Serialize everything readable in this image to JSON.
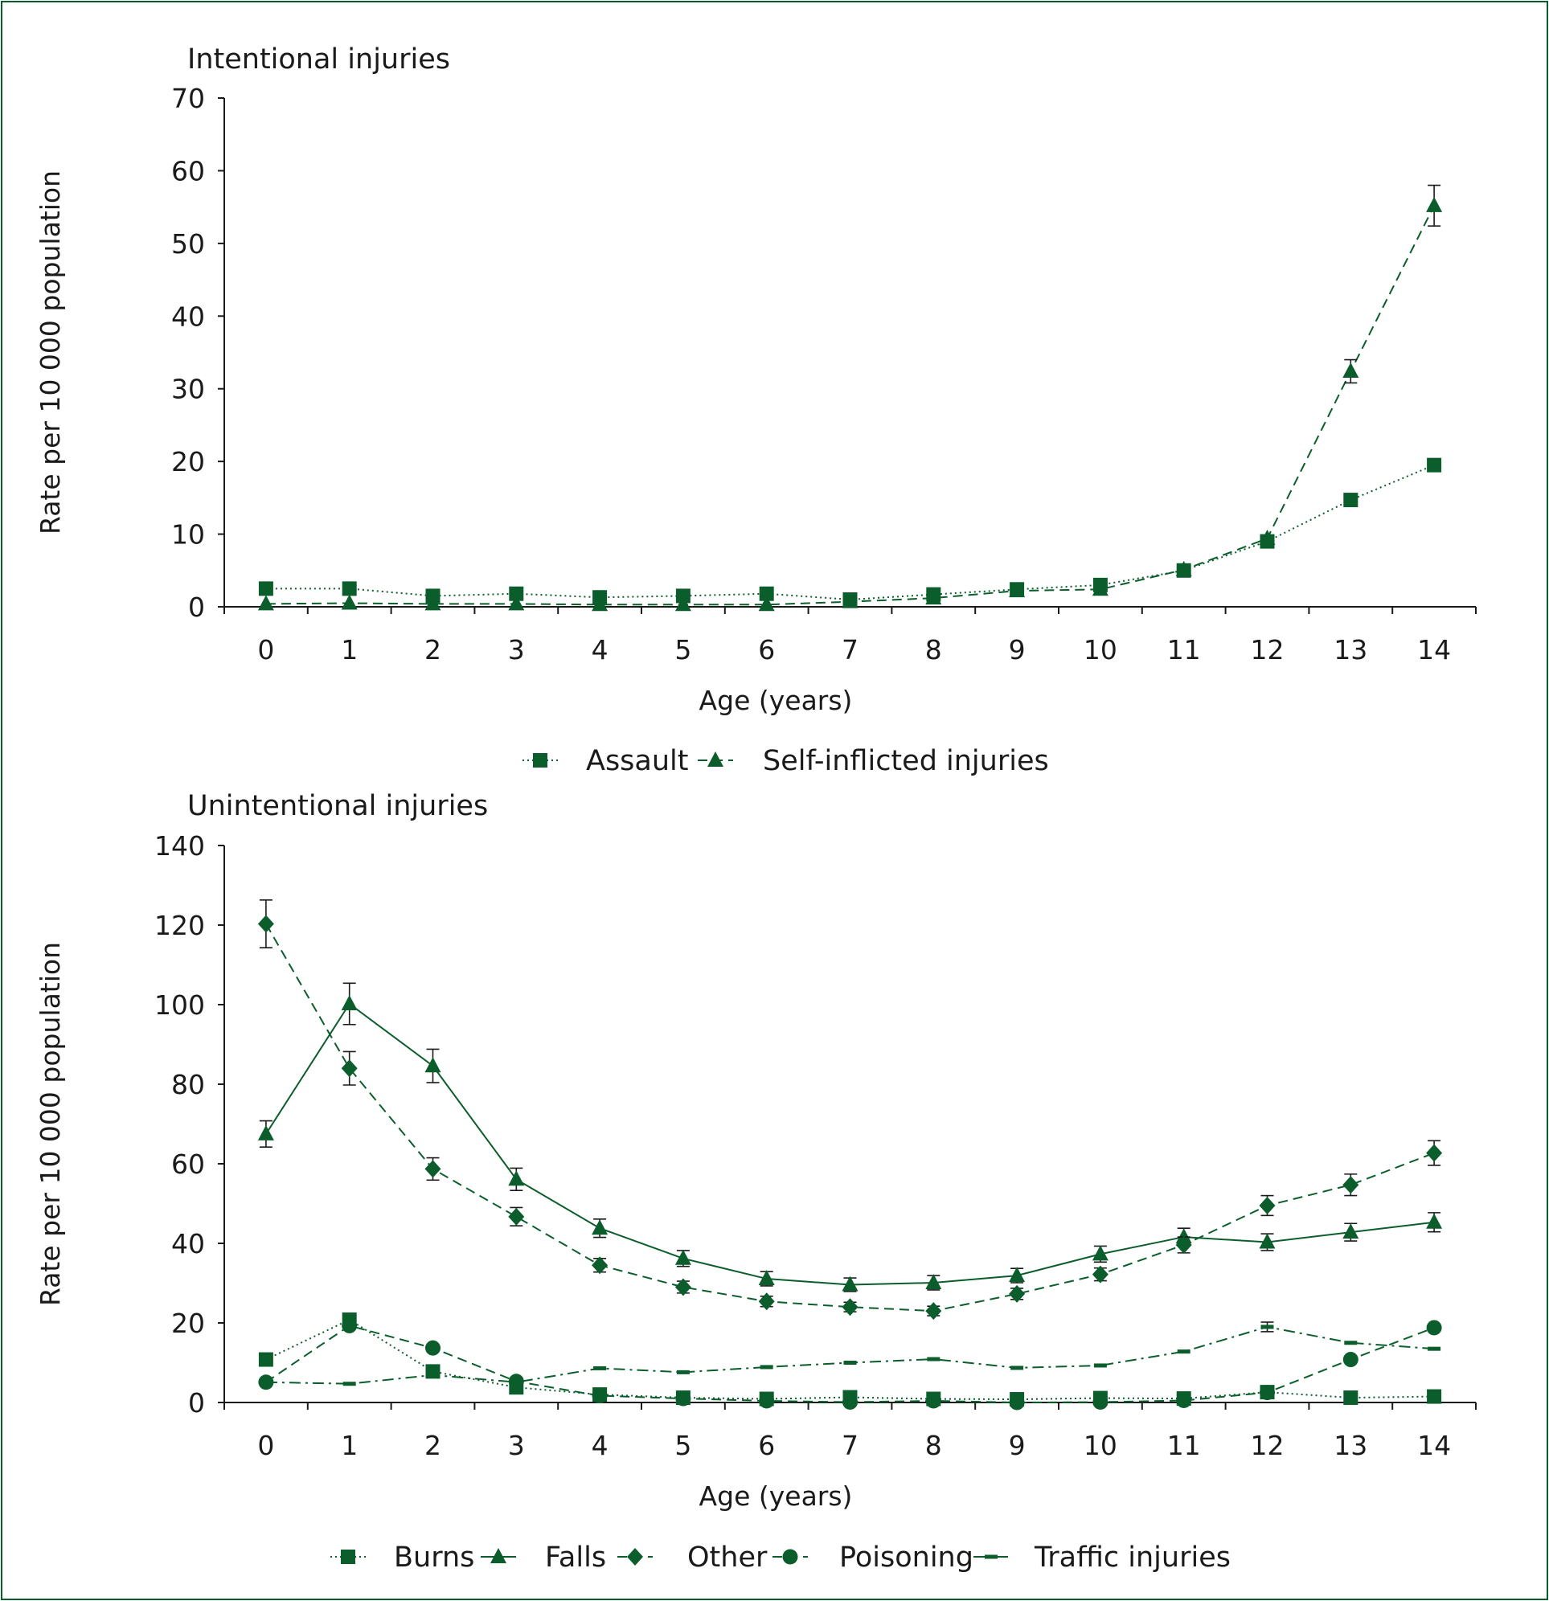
{
  "colors": {
    "series": "#0b5e2b",
    "axis": "#1a1a1a",
    "frame": "#0b5e2b"
  },
  "chart_data": [
    {
      "type": "line",
      "title": "Intentional injuries",
      "xlabel": "Age (years)",
      "ylabel": "Rate per 10 000 population",
      "x": [
        0,
        1,
        2,
        3,
        4,
        5,
        6,
        7,
        8,
        9,
        10,
        11,
        12,
        13,
        14
      ],
      "ylim": [
        0,
        70
      ],
      "yticks": [
        0,
        10,
        20,
        30,
        40,
        50,
        60,
        70
      ],
      "grid": false,
      "legend": "bottom",
      "series": [
        {
          "name": "Assault",
          "marker": "square",
          "line": "dotted",
          "values": [
            2.5,
            2.5,
            1.5,
            1.8,
            1.3,
            1.5,
            1.8,
            1.0,
            1.7,
            2.4,
            3.0,
            5.0,
            9.0,
            14.7,
            19.5
          ],
          "error": [
            0,
            0,
            0,
            0,
            0,
            0,
            0,
            0,
            0,
            0,
            0,
            0,
            0,
            0,
            0.8
          ]
        },
        {
          "name": "Self-inflicted injuries",
          "marker": "triangle",
          "line": "dashed",
          "values": [
            0.4,
            0.5,
            0.4,
            0.4,
            0.3,
            0.3,
            0.3,
            0.7,
            1.2,
            2.2,
            2.4,
            5.1,
            9.4,
            32.4,
            55.2
          ],
          "error": [
            0,
            0,
            0,
            0,
            0,
            0,
            0,
            0,
            0,
            0,
            0,
            0,
            0,
            1.6,
            2.8
          ]
        }
      ]
    },
    {
      "type": "line",
      "title": "Unintentional injuries",
      "xlabel": "Age (years)",
      "ylabel": "Rate per 10 000 population",
      "x": [
        0,
        1,
        2,
        3,
        4,
        5,
        6,
        7,
        8,
        9,
        10,
        11,
        12,
        13,
        14
      ],
      "ylim": [
        0,
        140
      ],
      "yticks": [
        0,
        20,
        40,
        60,
        80,
        100,
        120,
        140
      ],
      "grid": false,
      "legend": "bottom",
      "series": [
        {
          "name": "Burns",
          "marker": "square",
          "line": "dotted",
          "values": [
            10.8,
            20.8,
            7.8,
            3.8,
            2.0,
            1.2,
            0.9,
            1.3,
            0.9,
            0.8,
            1.1,
            1.0,
            2.6,
            1.2,
            1.5
          ],
          "error": [
            0,
            0,
            0,
            0,
            0,
            0,
            0,
            0,
            0,
            0,
            0,
            0,
            0,
            0,
            0
          ]
        },
        {
          "name": "Falls",
          "marker": "triangle",
          "line": "solid",
          "values": [
            67.5,
            100.2,
            84.6,
            56.1,
            43.8,
            36.2,
            31.1,
            29.6,
            30.1,
            31.9,
            37.3,
            41.6,
            40.3,
            42.8,
            45.3
          ],
          "error": [
            3.3,
            5.2,
            4.2,
            2.8,
            2.3,
            2.0,
            1.8,
            1.7,
            1.8,
            1.8,
            2.0,
            2.2,
            2.1,
            2.2,
            2.4
          ]
        },
        {
          "name": "Other",
          "marker": "diamond",
          "line": "dashed",
          "values": [
            120.3,
            84.0,
            58.7,
            46.7,
            34.5,
            29.0,
            25.4,
            24.0,
            23.0,
            27.3,
            32.2,
            39.6,
            49.5,
            54.7,
            62.7
          ],
          "error": [
            6.0,
            4.2,
            2.8,
            2.3,
            1.7,
            1.5,
            1.3,
            1.2,
            1.2,
            1.4,
            1.6,
            2.0,
            2.5,
            2.7,
            3.1
          ]
        },
        {
          "name": "Poisoning",
          "marker": "circle",
          "line": "dashed",
          "values": [
            5.1,
            19.3,
            13.7,
            5.3,
            1.7,
            1.0,
            0.4,
            0.1,
            0.4,
            0.0,
            0.1,
            0.5,
            2.5,
            10.8,
            18.8
          ],
          "error": [
            0,
            0,
            0,
            0,
            0,
            0,
            0,
            0,
            0,
            0,
            0,
            0,
            0,
            0,
            0
          ]
        },
        {
          "name": "Traffic injuries",
          "marker": "dash",
          "line": "dashdot",
          "values": [
            5.1,
            4.7,
            6.9,
            5.1,
            8.6,
            7.6,
            8.9,
            10.0,
            10.9,
            8.7,
            9.3,
            12.8,
            19.0,
            15.0,
            13.5
          ],
          "error": [
            0,
            0,
            0,
            0,
            0,
            0,
            0,
            0,
            0,
            0,
            0,
            0,
            1.2,
            0,
            0
          ]
        }
      ]
    }
  ]
}
